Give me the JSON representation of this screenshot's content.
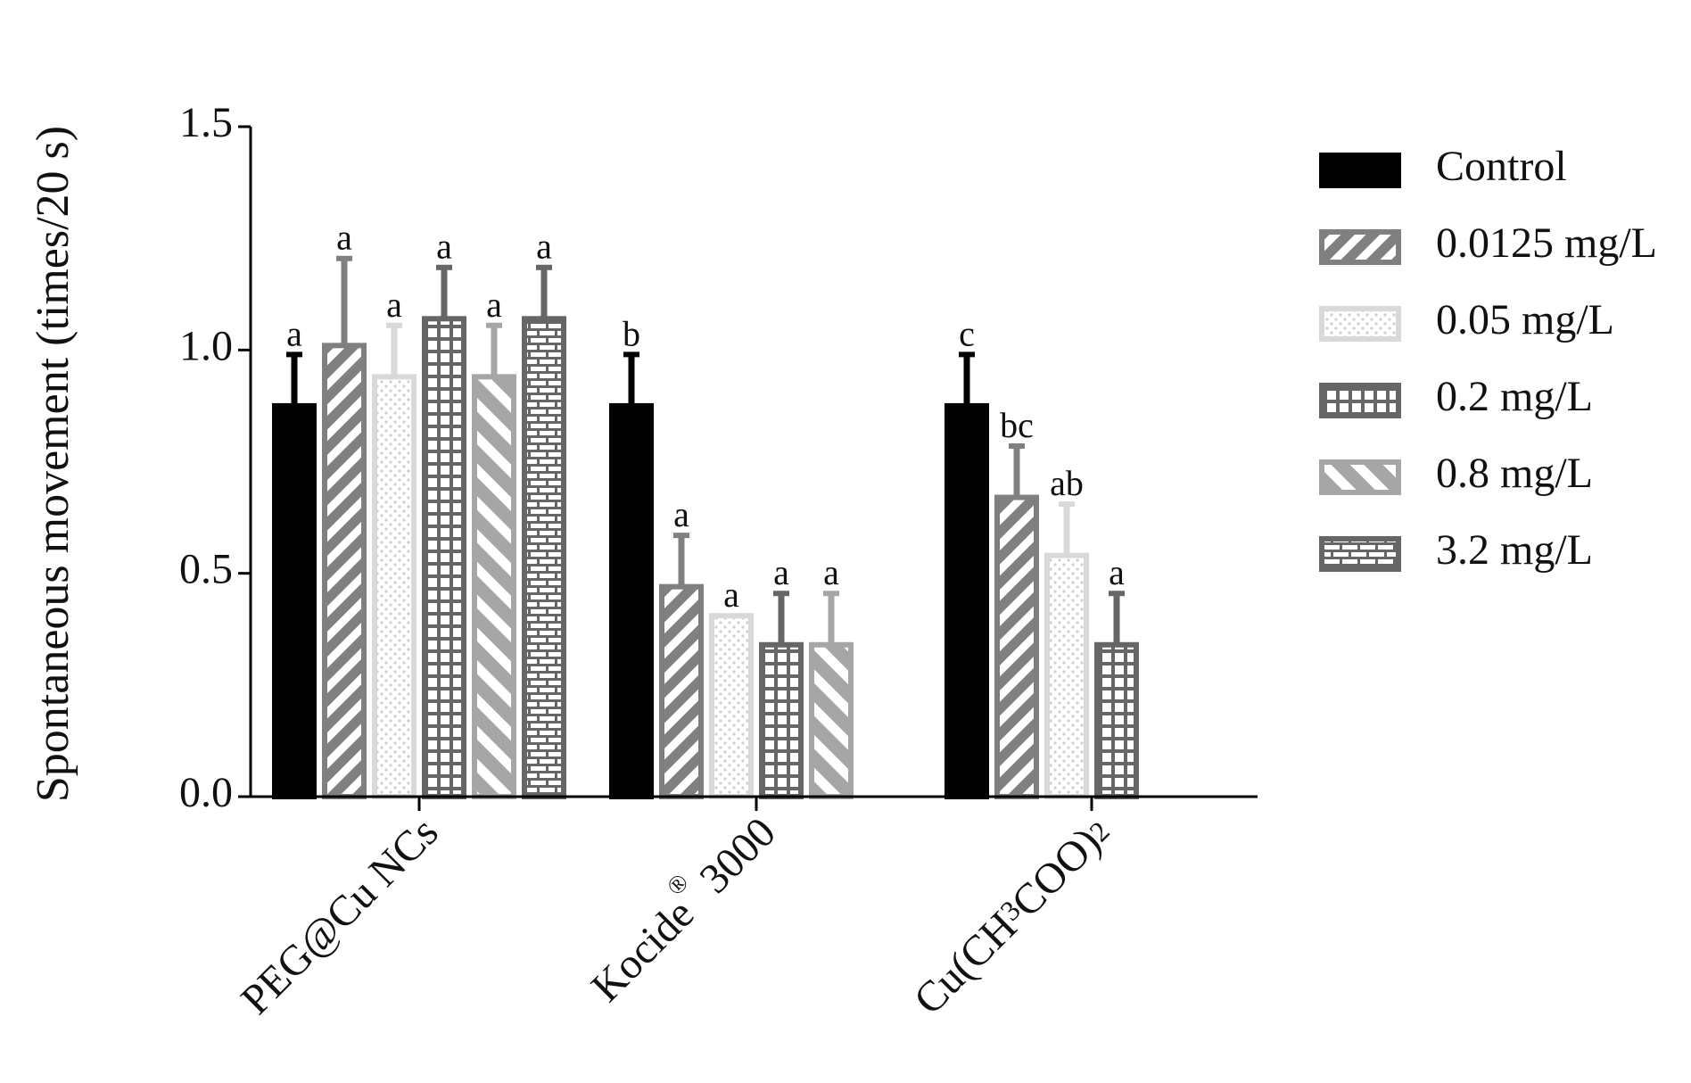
{
  "chart_data": {
    "type": "bar",
    "ylabel": "Spontaneous movement (times/20 s)",
    "xlabel": "",
    "ylim": [
      0,
      1.5
    ],
    "yticks": [
      {
        "value": 0.0,
        "label": "0.0"
      },
      {
        "value": 0.5,
        "label": "0.5"
      },
      {
        "value": 1.0,
        "label": "1.0"
      },
      {
        "value": 1.5,
        "label": "1.5"
      }
    ],
    "legend_position": "right",
    "categories": [
      {
        "label": "PEG@Cu NCs"
      },
      {
        "label": "Kocide® 3000",
        "pre": "Kocide",
        "sup": "®",
        "post": " 3000"
      },
      {
        "label": "Cu(CH3COO)2",
        "pre": "Cu(CH",
        "sub1": "3",
        "mid": "COO)",
        "sub2": "2"
      }
    ],
    "series": [
      {
        "name": "Control",
        "pattern": "solid",
        "color": "#000000",
        "values": [
          0.875,
          0.875,
          0.875
        ],
        "errors": [
          0.115,
          0.115,
          0.115
        ],
        "labels": [
          "a",
          "b",
          "c"
        ]
      },
      {
        "name": "0.0125 mg/L",
        "pattern": "diagonal",
        "color": "#808080",
        "values": [
          1.01,
          0.47,
          0.67
        ],
        "errors": [
          0.195,
          0.115,
          0.115
        ],
        "labels": [
          "a",
          "a",
          "bc"
        ]
      },
      {
        "name": "0.05 mg/L",
        "pattern": "dots",
        "color": "#d9d9d9",
        "values": [
          0.94,
          0.405,
          0.54
        ],
        "errors": [
          0.115,
          0.0,
          0.115
        ],
        "labels": [
          "a",
          "a",
          "ab"
        ]
      },
      {
        "name": "0.2 mg/L",
        "pattern": "grid",
        "color": "#666666",
        "values": [
          1.07,
          0.34,
          0.34
        ],
        "errors": [
          0.115,
          0.115,
          0.115
        ],
        "labels": [
          "a",
          "a",
          "a"
        ]
      },
      {
        "name": "0.8 mg/L",
        "pattern": "backdiagonal",
        "color": "#a6a6a6",
        "values": [
          0.94,
          0.34,
          null
        ],
        "errors": [
          0.115,
          0.115,
          null
        ],
        "labels": [
          "a",
          "a",
          null
        ]
      },
      {
        "name": "3.2 mg/L",
        "pattern": "brick",
        "color": "#666666",
        "values": [
          1.07,
          null,
          null
        ],
        "errors": [
          0.115,
          null,
          null
        ],
        "labels": [
          "a",
          null,
          null
        ]
      }
    ]
  }
}
